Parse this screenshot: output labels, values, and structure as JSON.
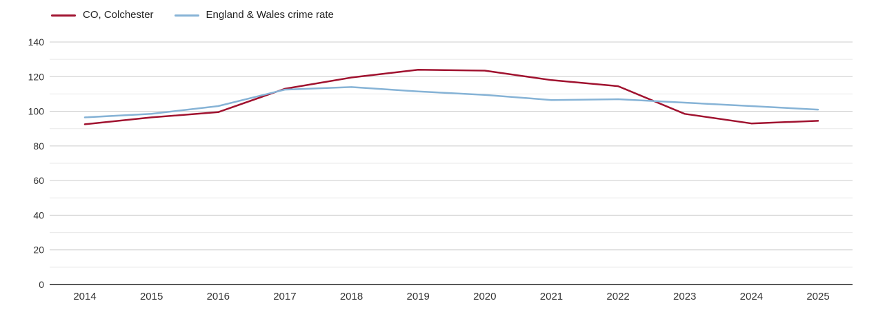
{
  "chart_data": {
    "type": "line",
    "title": "",
    "x": [
      2014,
      2015,
      2016,
      2017,
      2018,
      2019,
      2020,
      2021,
      2022,
      2023,
      2024,
      2025
    ],
    "series": [
      {
        "name": "CO, Colchester",
        "color": "#a0122f",
        "values": [
          92.5,
          96.5,
          99.5,
          113,
          119.5,
          124,
          123.5,
          118,
          114.5,
          98.5,
          93,
          94.5
        ]
      },
      {
        "name": "England & Wales crime rate",
        "color": "#86b3d6",
        "values": [
          96.5,
          98.5,
          103,
          112.5,
          114,
          111.5,
          109.5,
          106.5,
          107,
          105,
          103,
          101
        ]
      }
    ],
    "xlabel": "",
    "ylabel": "",
    "ylim": [
      0,
      140
    ],
    "yticks": [
      0,
      20,
      40,
      60,
      80,
      100,
      120,
      140
    ],
    "minor_ytick_step": 10,
    "grid": true,
    "legend_position": "top-left",
    "colors": {
      "major_grid": "#cccccc",
      "minor_grid": "#e8e8e8",
      "axis_line": "#222222",
      "tick_label": "#333333"
    }
  }
}
